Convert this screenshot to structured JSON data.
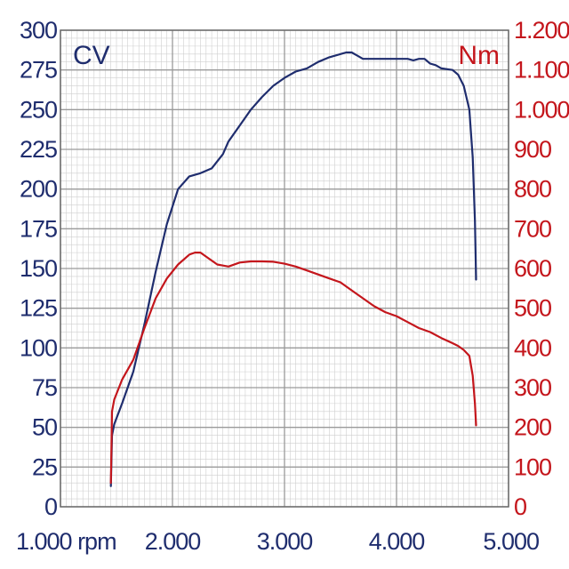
{
  "chart_data": {
    "type": "line",
    "title": "",
    "colors": {
      "power": "#1f2d6e",
      "torque": "#c4161c",
      "grid_major": "#9a9a9a",
      "grid_minor": "#cfcfcf",
      "left_ticks": "#1f2d6e",
      "right_ticks": "#c4161c"
    },
    "grid": true,
    "x_axis": {
      "range": [
        1000,
        5000
      ],
      "ticks": [
        1000,
        2000,
        3000,
        4000,
        5000
      ],
      "tick_labels": [
        "1.000 rpm",
        "2.000",
        "3.000",
        "4.000",
        "5.000"
      ]
    },
    "y_left": {
      "unit_label": "CV",
      "range": [
        0,
        300
      ],
      "ticks": [
        0,
        25,
        50,
        75,
        100,
        125,
        150,
        175,
        200,
        225,
        250,
        275,
        300
      ],
      "tick_labels": [
        "0",
        "25",
        "50",
        "75",
        "100",
        "125",
        "150",
        "175",
        "200",
        "225",
        "250",
        "275",
        "300"
      ]
    },
    "y_right": {
      "unit_label": "Nm",
      "range": [
        0,
        1200
      ],
      "ticks": [
        0,
        100,
        200,
        300,
        400,
        500,
        600,
        700,
        800,
        900,
        1000,
        1100,
        1200
      ],
      "tick_labels": [
        "0",
        "100",
        "200",
        "300",
        "400",
        "500",
        "600",
        "700",
        "800",
        "900",
        "1.000",
        "1.100",
        "1.200"
      ]
    },
    "series": [
      {
        "axis": "left",
        "color": "#1f2d6e",
        "x": [
          1450,
          1460,
          1480,
          1550,
          1650,
          1750,
          1850,
          1950,
          2050,
          2150,
          2250,
          2350,
          2450,
          2500,
          2600,
          2700,
          2800,
          2900,
          3000,
          3100,
          3200,
          3300,
          3400,
          3500,
          3550,
          3600,
          3650,
          3700,
          3800,
          3900,
          4000,
          4100,
          4150,
          4200,
          4250,
          4300,
          4350,
          4400,
          4500,
          4550,
          4600,
          4650,
          4680,
          4700,
          4710
        ],
        "values": [
          13,
          45,
          52,
          65,
          85,
          115,
          148,
          178,
          200,
          208,
          210,
          213,
          222,
          230,
          240,
          250,
          258,
          265,
          270,
          274,
          276,
          280,
          283,
          285,
          286,
          286,
          284,
          282,
          282,
          282,
          282,
          282,
          281,
          282,
          282,
          279,
          278,
          276,
          275,
          272,
          265,
          250,
          220,
          180,
          143
        ]
      },
      {
        "axis": "right",
        "color": "#c4161c",
        "x": [
          1450,
          1460,
          1480,
          1550,
          1650,
          1750,
          1850,
          1950,
          2050,
          2150,
          2200,
          2250,
          2300,
          2400,
          2500,
          2600,
          2700,
          2800,
          2900,
          3000,
          3100,
          3200,
          3300,
          3400,
          3500,
          3600,
          3700,
          3800,
          3900,
          4000,
          4100,
          4200,
          4300,
          4400,
          4500,
          4550,
          4600,
          4650,
          4680,
          4700,
          4710
        ],
        "values": [
          60,
          240,
          270,
          320,
          370,
          450,
          525,
          575,
          610,
          635,
          640,
          640,
          630,
          610,
          605,
          615,
          618,
          618,
          617,
          612,
          605,
          595,
          585,
          575,
          565,
          545,
          525,
          505,
          490,
          480,
          465,
          450,
          440,
          425,
          412,
          405,
          395,
          380,
          330,
          260,
          205
        ]
      }
    ]
  }
}
